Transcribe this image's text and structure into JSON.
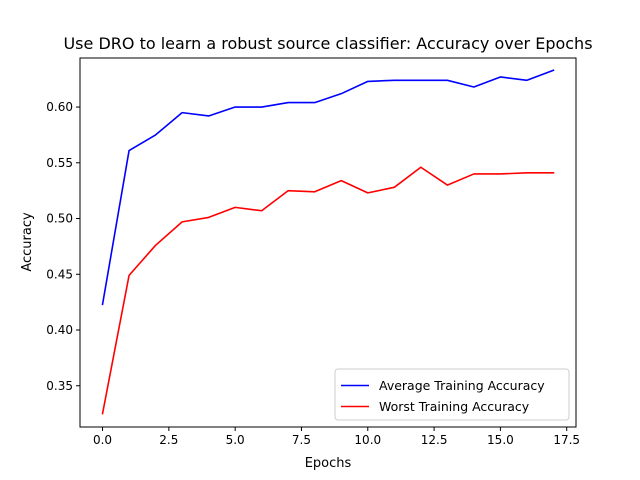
{
  "chart_data": {
    "type": "line",
    "title": "Use DRO to learn a robust source classifier: Accuracy over Epochs",
    "xlabel": "Epochs",
    "ylabel": "Accuracy",
    "xlim": [
      -0.85,
      17.85
    ],
    "ylim": [
      0.313,
      0.644
    ],
    "xticks": [
      0.0,
      2.5,
      5.0,
      7.5,
      10.0,
      12.5,
      15.0,
      17.5
    ],
    "xtick_labels": [
      "0.0",
      "2.5",
      "5.0",
      "7.5",
      "10.0",
      "12.5",
      "15.0",
      "17.5"
    ],
    "yticks": [
      0.35,
      0.4,
      0.45,
      0.5,
      0.55,
      0.6
    ],
    "ytick_labels": [
      "0.35",
      "0.40",
      "0.45",
      "0.50",
      "0.55",
      "0.60"
    ],
    "grid": false,
    "legend_position": "lower-right",
    "x": [
      0,
      1,
      2,
      3,
      4,
      5,
      6,
      7,
      8,
      9,
      10,
      11,
      12,
      13,
      14,
      15,
      16,
      17
    ],
    "series": [
      {
        "name": "Average Training Accuracy",
        "color": "#0000ff",
        "values": [
          0.423,
          0.561,
          0.575,
          0.595,
          0.592,
          0.6,
          0.6,
          0.604,
          0.604,
          0.612,
          0.623,
          0.624,
          0.624,
          0.624,
          0.618,
          0.627,
          0.624,
          0.633
        ]
      },
      {
        "name": "Worst Training Accuracy",
        "color": "#ff0000",
        "values": [
          0.325,
          0.449,
          0.476,
          0.497,
          0.501,
          0.51,
          0.507,
          0.525,
          0.524,
          0.534,
          0.523,
          0.528,
          0.546,
          0.53,
          0.54,
          0.54,
          0.541,
          0.541
        ]
      }
    ]
  }
}
